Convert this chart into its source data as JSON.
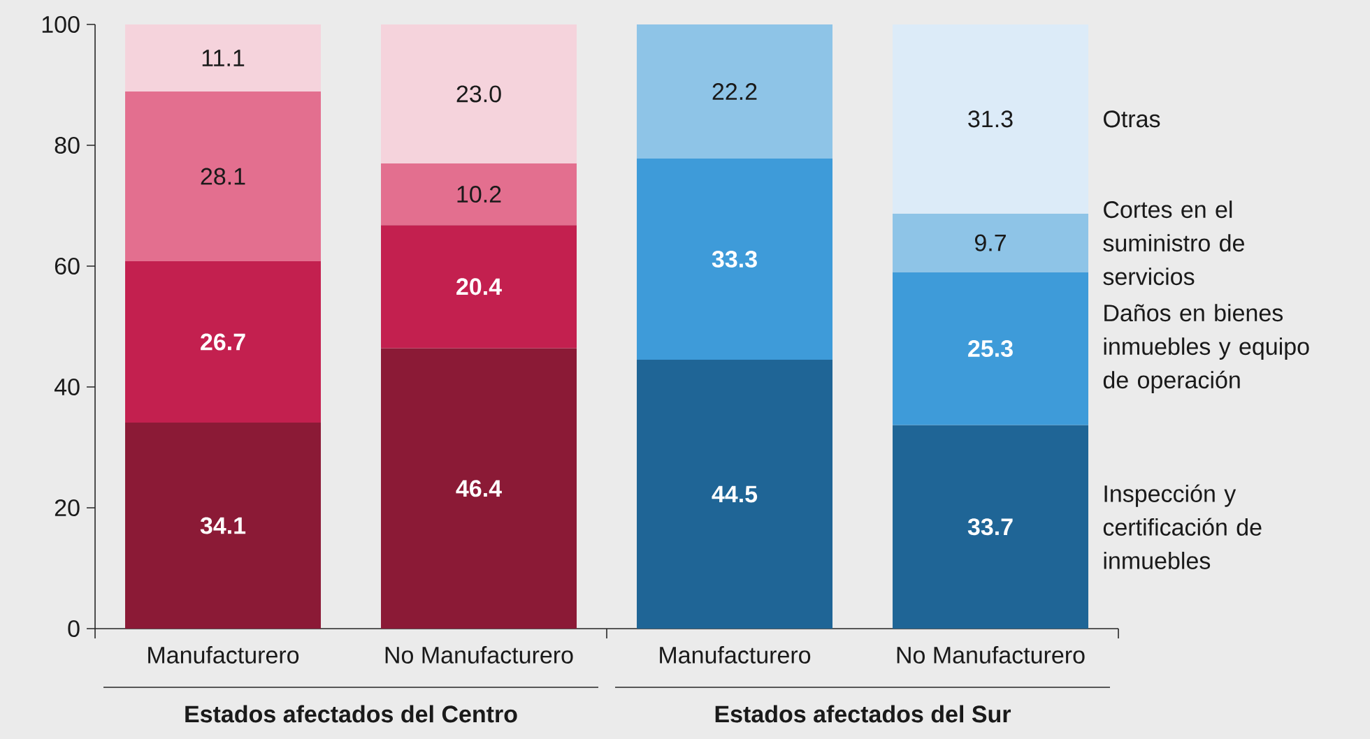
{
  "chart_data": {
    "type": "bar",
    "stacked": true,
    "categories": [
      "Manufacturero",
      "No Manufacturero",
      "Manufacturero",
      "No Manufacturero"
    ],
    "series": [
      {
        "name": "Inspección y certificación de inmuebles",
        "colors": [
          "#8b1a36",
          "#8b1a36",
          "#1f6596",
          "#1f6596"
        ],
        "values": [
          34.1,
          46.4,
          44.5,
          33.7
        ],
        "value_labels": [
          "34.1",
          "46.4",
          "44.5",
          "33.7"
        ]
      },
      {
        "name": "Daños en bienes inmuebles y equipo de operación",
        "colors": [
          "#c3204f",
          "#c3204f",
          "#3e9bd9",
          "#3e9bd9"
        ],
        "values": [
          26.7,
          20.4,
          33.3,
          25.3
        ],
        "value_labels": [
          "26.7",
          "20.4",
          "33.3",
          "25.3"
        ]
      },
      {
        "name": "Cortes en el suministro de servicios",
        "colors": [
          "#e36f8f",
          "#e36f8f",
          "#8ec4e7",
          "#8ec4e7"
        ],
        "values": [
          28.1,
          10.2,
          22.2,
          9.7
        ],
        "value_labels": [
          "28.1",
          "10.2",
          "22.2",
          "9.7"
        ]
      },
      {
        "name": "Otras",
        "colors": [
          "#f5d3dc",
          "#f5d3dc",
          "#dcebf8",
          "#dcebf8"
        ],
        "values": [
          11.1,
          23.0,
          null,
          31.3
        ],
        "value_labels": [
          "11.1",
          "23.0",
          null,
          "31.3"
        ]
      }
    ],
    "ylim": [
      0,
      100
    ],
    "yticks": [
      0,
      20,
      40,
      60,
      80,
      100
    ],
    "annotations": [
      "Estados afectados del Centro",
      "Estados afectados del Sur"
    ]
  }
}
